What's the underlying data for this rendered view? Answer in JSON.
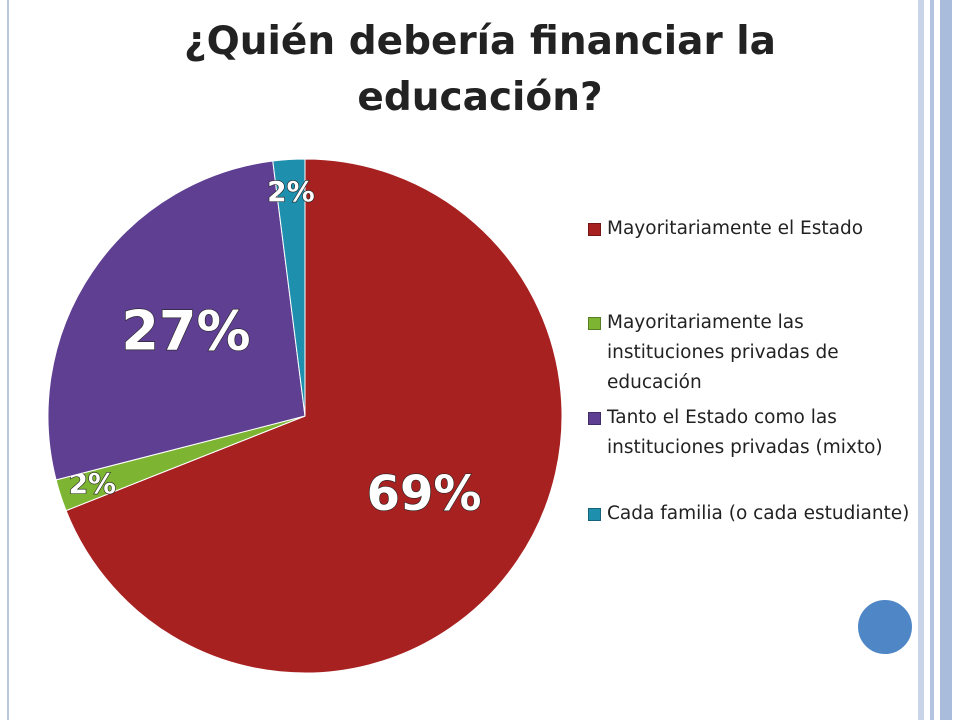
{
  "chart_data": {
    "type": "pie",
    "title": "¿Quién debería financiar la educación?",
    "categories": [
      "Mayoritariamente el Estado",
      "Mayoritariamente las instituciones privadas de educación",
      "Tanto el Estado como las instituciones privadas (mixto)",
      "Cada familia (o cada estudiante)"
    ],
    "values": [
      69,
      2,
      27,
      2
    ],
    "value_labels": [
      "69%",
      "2%",
      "27%",
      "2%"
    ],
    "colors": [
      "#a82121",
      "#7db532",
      "#5e3f91",
      "#1f8fae"
    ],
    "legend": "right"
  }
}
